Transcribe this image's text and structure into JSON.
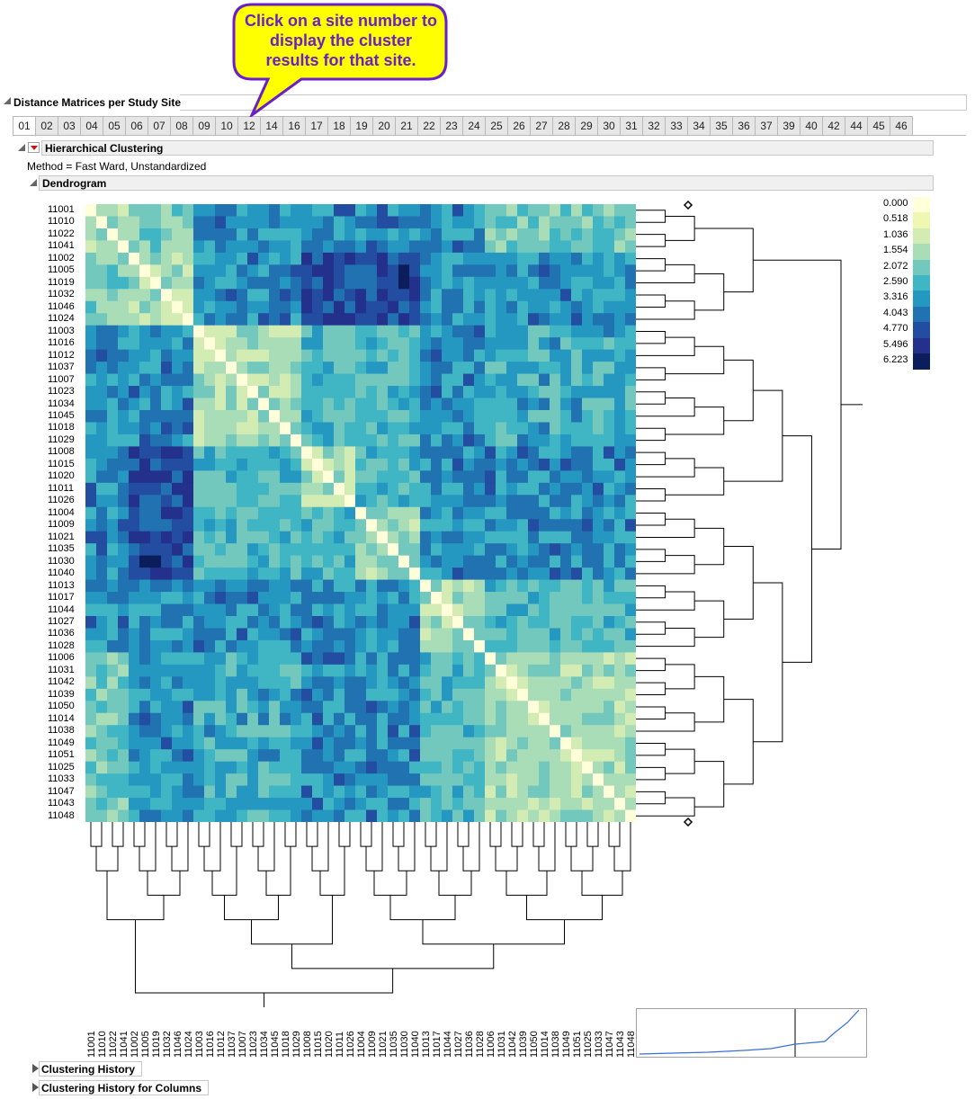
{
  "callout": {
    "text": "Click on a site number to display the cluster results for that site.",
    "fill": "#ffff00",
    "border": "#6a1fc9",
    "text_color": "#6a1fc9"
  },
  "report": {
    "title": "Distance Matrices per Study Site",
    "tabs": [
      "01",
      "02",
      "03",
      "04",
      "05",
      "06",
      "07",
      "08",
      "09",
      "10",
      "12",
      "14",
      "16",
      "17",
      "18",
      "19",
      "20",
      "21",
      "22",
      "23",
      "24",
      "25",
      "26",
      "27",
      "28",
      "29",
      "30",
      "31",
      "32",
      "33",
      "34",
      "35",
      "36",
      "37",
      "39",
      "40",
      "42",
      "44",
      "45",
      "46"
    ],
    "active_tab": "01",
    "clustering_title": "Hierarchical Clustering",
    "method_text": "Method = Fast Ward,  Unstandardized",
    "dendrogram_title": "Dendrogram",
    "sections_closed": [
      "Clustering History",
      "Clustering History for Columns"
    ]
  },
  "heatmap": {
    "labels": [
      "11001",
      "11010",
      "11022",
      "11041",
      "11002",
      "11005",
      "11019",
      "11032",
      "11046",
      "11024",
      "11003",
      "11016",
      "11012",
      "11037",
      "11007",
      "11023",
      "11034",
      "11045",
      "11018",
      "11029",
      "11008",
      "11015",
      "11020",
      "11011",
      "11026",
      "11004",
      "11009",
      "11021",
      "11035",
      "11030",
      "11040",
      "11013",
      "11017",
      "11044",
      "11027",
      "11036",
      "11028",
      "11006",
      "11031",
      "11042",
      "11039",
      "11050",
      "11014",
      "11038",
      "11049",
      "11051",
      "11025",
      "11033",
      "11047",
      "11043",
      "11048"
    ],
    "groups": [
      [
        0,
        4
      ],
      [
        4,
        10
      ],
      [
        10,
        20
      ],
      [
        20,
        25
      ],
      [
        25,
        31
      ],
      [
        31,
        37
      ],
      [
        37,
        51
      ]
    ]
  },
  "legend": {
    "labels": [
      "0.000",
      "0.518",
      "1.036",
      "1.554",
      "2.072",
      "2.590",
      "3.316",
      "4.043",
      "4.770",
      "5.496",
      "6.223"
    ],
    "colors": [
      "#ffffd9",
      "#eef8b3",
      "#d2ecb4",
      "#a9ddb7",
      "#73c8bd",
      "#40b5c4",
      "#2498c1",
      "#2072b1",
      "#234da0",
      "#23308c",
      "#0b1d5a"
    ]
  }
}
